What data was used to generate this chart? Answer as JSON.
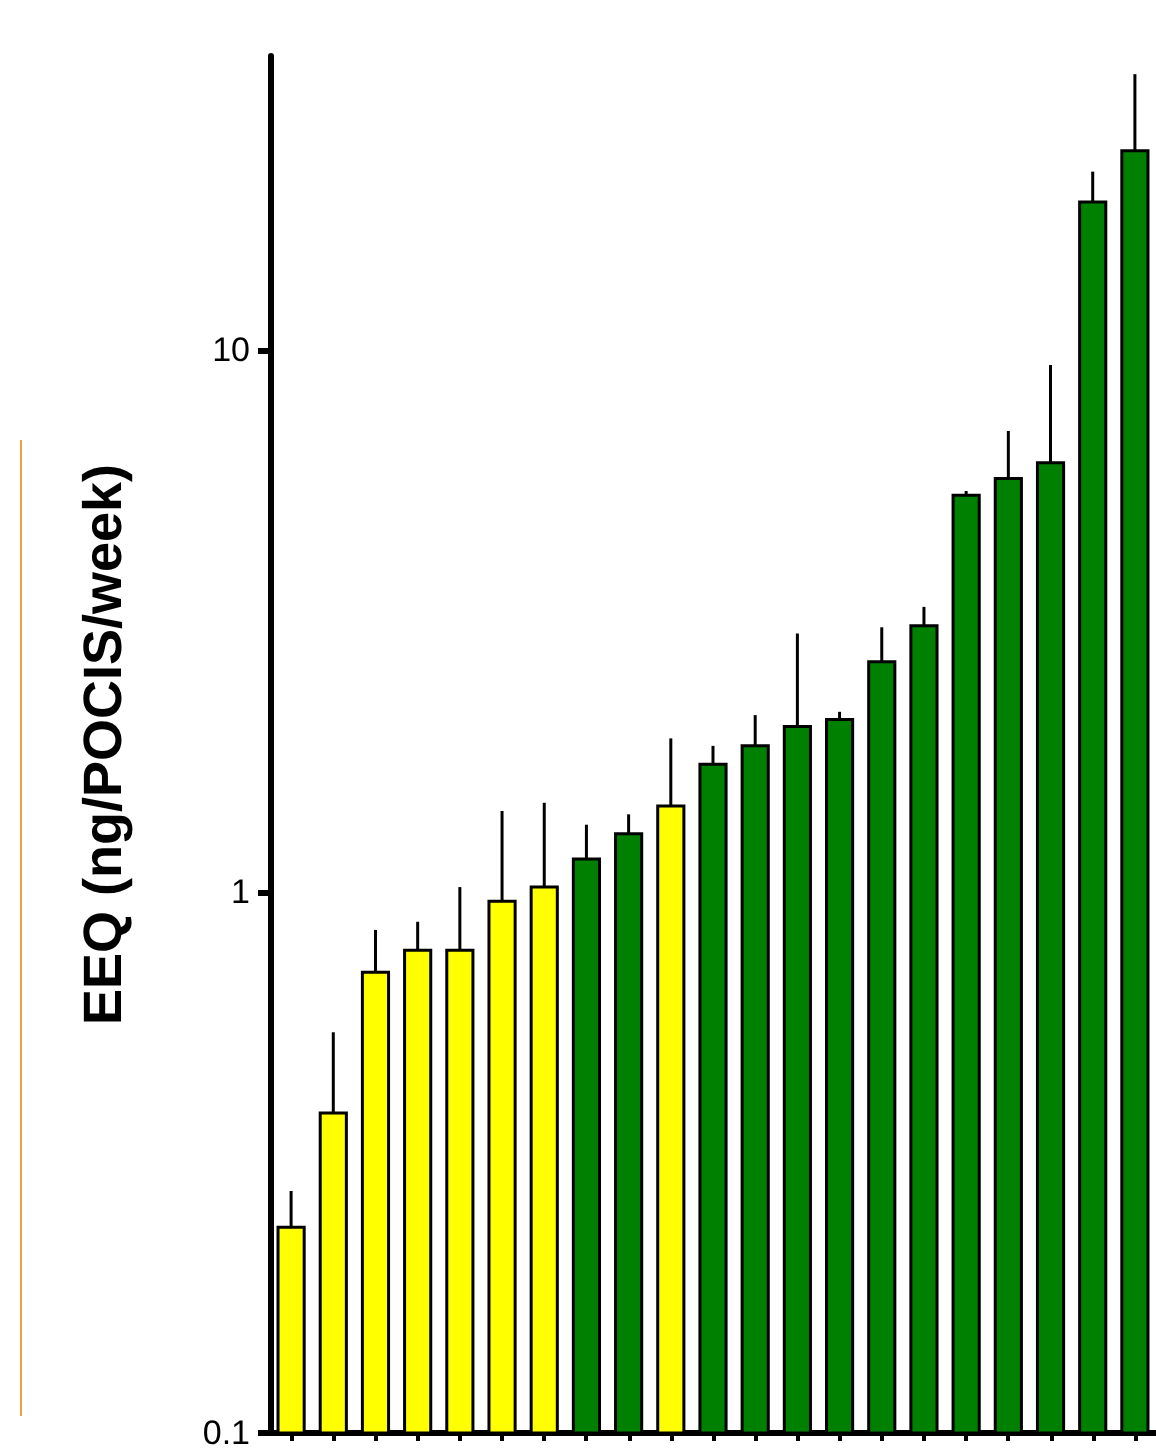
{
  "chart_data": {
    "type": "bar",
    "ylabel": "EEQ (ng/POCIS/week)",
    "log": true,
    "grid": false,
    "tick_labels": "y",
    "categories": [
      null,
      null,
      null,
      null,
      null,
      null,
      null,
      null,
      null,
      null,
      null,
      null,
      null,
      null,
      null,
      null,
      null,
      null,
      null,
      null,
      null
    ],
    "values": [
      0.24,
      0.39,
      0.71,
      0.78,
      0.78,
      0.96,
      1.02,
      1.15,
      1.28,
      1.44,
      1.72,
      1.86,
      2.02,
      2.08,
      2.66,
      3.1,
      5.4,
      5.8,
      6.2,
      18.8,
      23.4
    ],
    "errors": [
      [
        0.24,
        0.28
      ],
      [
        0.39,
        0.55
      ],
      [
        0.71,
        0.85
      ],
      [
        0.78,
        0.88
      ],
      [
        0.78,
        1.02
      ],
      [
        0.96,
        1.41
      ],
      [
        1.02,
        1.46
      ],
      [
        1.15,
        1.33
      ],
      [
        1.28,
        1.39
      ],
      [
        1.44,
        1.92
      ],
      [
        1.72,
        1.86
      ],
      [
        1.86,
        2.12
      ],
      [
        2.02,
        3.0
      ],
      [
        2.08,
        2.15
      ],
      [
        2.66,
        3.08
      ],
      [
        3.1,
        3.36
      ],
      [
        5.4,
        5.5
      ],
      [
        5.8,
        7.1
      ],
      [
        6.2,
        9.4
      ],
      [
        18.8,
        21.4
      ],
      [
        23.4,
        32.4
      ]
    ],
    "colors": [
      "#ffff00",
      "#ffff00",
      "#ffff00",
      "#ffff00",
      "#ffff00",
      "#ffff00",
      "#ffff00",
      "#008000",
      "#008000",
      "#ffff00",
      "#008000",
      "#008000",
      "#008000",
      "#008000",
      "#008000",
      "#008000",
      "#008000",
      "#008000",
      "#008000",
      "#008000",
      "#008000"
    ],
    "ylim": [
      0.1,
      35
    ],
    "yticks": [
      0.1,
      1,
      10
    ]
  }
}
